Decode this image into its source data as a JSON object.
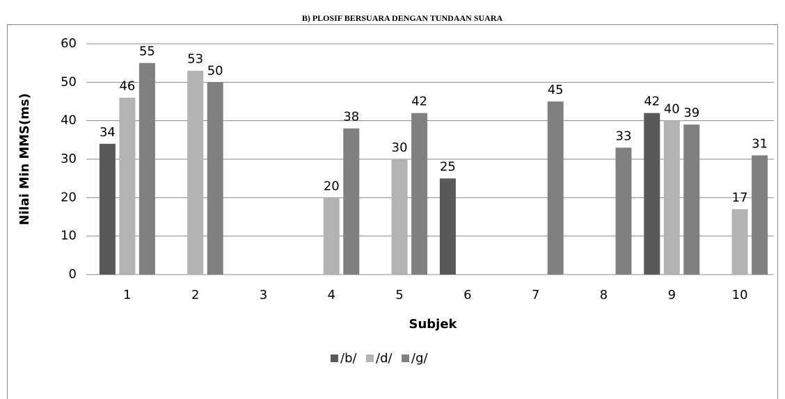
{
  "chart_data": {
    "type": "bar",
    "title": "B) PLOSIF BERSUARA DENGAN TUNDAAN SUARA",
    "x_label": "Subjek",
    "y_label": "Nilai Min MMS(ms)",
    "categories": [
      "1",
      "2",
      "3",
      "4",
      "5",
      "6",
      "7",
      "8",
      "9",
      "10"
    ],
    "series": [
      {
        "name": "/b/",
        "color": "#595959",
        "values": [
          34,
          null,
          null,
          null,
          null,
          25,
          null,
          null,
          42,
          null
        ]
      },
      {
        "name": "/d/",
        "color": "#b3b3b3",
        "values": [
          46,
          53,
          null,
          20,
          30,
          null,
          null,
          null,
          40,
          17
        ]
      },
      {
        "name": "/g/",
        "color": "#808080",
        "values": [
          55,
          50,
          null,
          38,
          42,
          null,
          45,
          33,
          39,
          31
        ]
      }
    ],
    "ylim": [
      0,
      60
    ],
    "yticks": [
      0,
      10,
      20,
      30,
      40,
      50,
      60
    ],
    "grid": true,
    "legend": "bottom"
  }
}
